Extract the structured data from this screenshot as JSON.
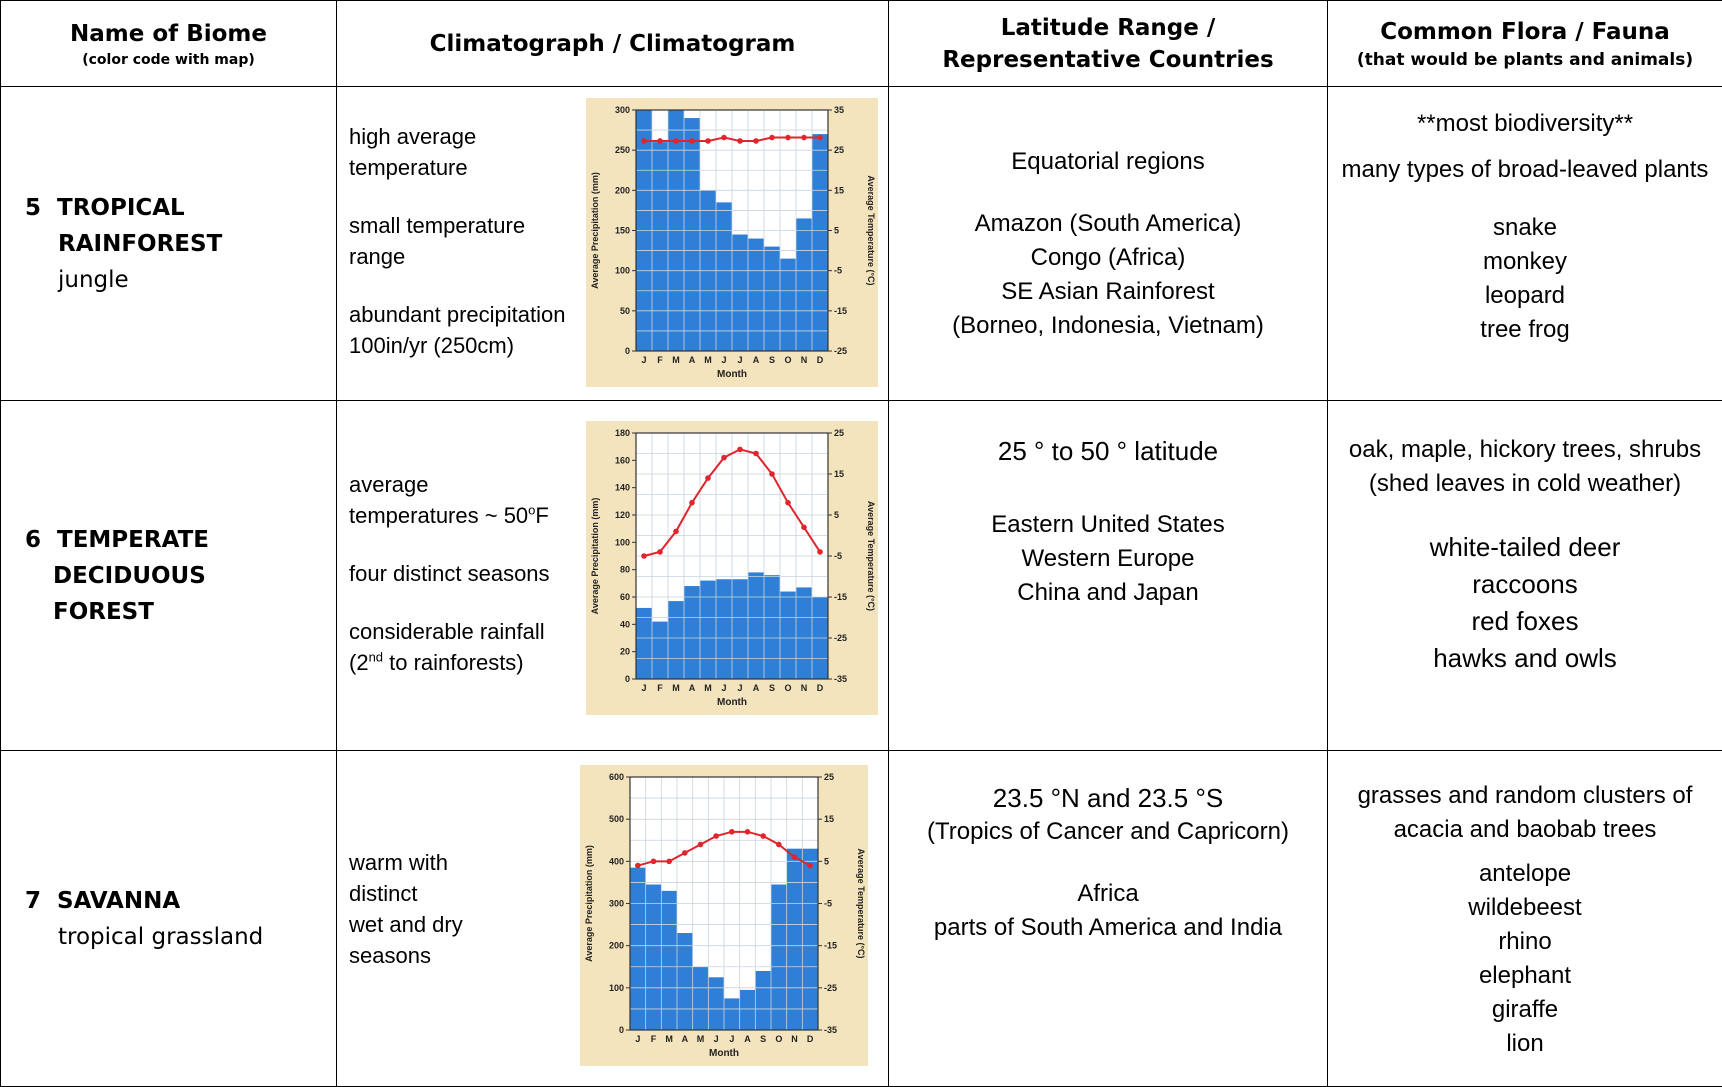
{
  "headers": {
    "name": "Name of Biome",
    "name_sub": "(color code with map)",
    "climatograph": "Climatograph / Climatogram",
    "latitude_line1": "Latitude Range /",
    "latitude_line2": "Representative Countries",
    "flora": "Common Flora / Fauna",
    "flora_sub": "(that would be plants and animals)"
  },
  "rows": [
    {
      "number": "5",
      "name_line1": "TROPICAL",
      "name_line2": "RAINFOREST",
      "common_name": "jungle",
      "climate": [
        "high average",
        "temperature",
        "small temperature",
        "range",
        "abundant precipitation",
        "100in/yr  (250cm)"
      ],
      "latitude": [
        "Equatorial regions",
        "Amazon (South America)",
        "Congo (Africa)",
        "SE Asian Rainforest",
        "(Borneo, Indonesia, Vietnam)"
      ],
      "flora": [
        "**most biodiversity**",
        "many types of broad-leaved plants"
      ],
      "fauna": [
        "snake",
        "monkey",
        "leopard",
        "tree frog"
      ]
    },
    {
      "number": "6",
      "name_line1": "TEMPERATE",
      "name_line2": "DECIDUOUS",
      "name_line3": "FOREST",
      "climate": [
        "average",
        "temperatures ~ 50",
        "o",
        "F",
        "four distinct seasons",
        "considerable rainfall",
        "(2",
        "nd",
        " to rainforests)"
      ],
      "latitude": [
        "25 ° to 50 ° latitude",
        "Eastern United States",
        "Western Europe",
        "China and Japan"
      ],
      "flora": [
        "oak, maple, hickory trees, shrubs",
        "(shed leaves in cold weather)"
      ],
      "fauna": [
        "white-tailed deer",
        "raccoons",
        "red foxes",
        "hawks and owls"
      ]
    },
    {
      "number": "7",
      "name_line1": "SAVANNA",
      "common_name": "tropical grassland",
      "climate": [
        "warm with",
        "distinct",
        "wet and dry",
        "seasons"
      ],
      "latitude": [
        "23.5 °N and 23.5 °S",
        "(Tropics of Cancer and Capricorn)",
        "Africa",
        "parts of South America and India"
      ],
      "flora": [
        "grasses and random clusters of",
        "acacia and baobab trees"
      ],
      "fauna": [
        "antelope",
        "wildebeest",
        "rhino",
        "elephant",
        "giraffe",
        "lion"
      ]
    }
  ],
  "chart_data": [
    {
      "type": "bar",
      "categories": [
        "J",
        "F",
        "M",
        "A",
        "M",
        "J",
        "J",
        "A",
        "S",
        "O",
        "N",
        "D"
      ],
      "xlabel": "Month",
      "ylabel": "Average Precipitation (mm)",
      "y2label": "Average Temperature (°C)",
      "ylim": [
        0,
        300
      ],
      "y2lim": [
        -35,
        35
      ],
      "yticks": [
        "0",
        "50",
        "100",
        "150",
        "200",
        "250",
        "300"
      ],
      "y2ticks": [
        "-25",
        "-15",
        "-5",
        "5",
        "15",
        "25",
        "35"
      ],
      "series": [
        {
          "name": "Average Precipitation (mm)",
          "kind": "bar",
          "values": [
            300,
            260,
            300,
            290,
            200,
            185,
            145,
            140,
            130,
            115,
            165,
            270
          ]
        },
        {
          "name": "Average Temperature (°C)",
          "kind": "line",
          "values": [
            26,
            26,
            26,
            26,
            26,
            27,
            26,
            26,
            27,
            27,
            27,
            27
          ]
        }
      ],
      "colors": {
        "bar": "#2f7fd6",
        "line": "#e0252d",
        "background": "#f4e4bd"
      }
    },
    {
      "type": "bar",
      "categories": [
        "J",
        "F",
        "M",
        "A",
        "M",
        "J",
        "J",
        "A",
        "S",
        "O",
        "N",
        "D"
      ],
      "xlabel": "Month",
      "ylabel": "Average Precipitation (mm)",
      "y2label": "Average Temperature (°C)",
      "ylim": [
        0,
        180
      ],
      "y2lim": [
        -35,
        25
      ],
      "yticks": [
        "0",
        "20",
        "40",
        "60",
        "80",
        "100",
        "120",
        "140",
        "160",
        "180"
      ],
      "y2ticks": [
        "-35",
        "-25",
        "-15",
        "-5",
        "5",
        "15",
        "25"
      ],
      "series": [
        {
          "name": "Average Precipitation (mm)",
          "kind": "bar",
          "values": [
            52,
            42,
            57,
            68,
            72,
            73,
            73,
            78,
            76,
            64,
            67,
            60
          ]
        },
        {
          "name": "Average Temperature (°C)",
          "kind": "line",
          "values": [
            -5,
            -4,
            1,
            8,
            14,
            19,
            21,
            20,
            15,
            8,
            2,
            -4
          ]
        }
      ],
      "colors": {
        "bar": "#2f7fd6",
        "line": "#e0252d",
        "background": "#f4e4bd"
      }
    },
    {
      "type": "bar",
      "categories": [
        "J",
        "F",
        "M",
        "A",
        "M",
        "J",
        "J",
        "A",
        "S",
        "O",
        "N",
        "D"
      ],
      "xlabel": "Month",
      "ylabel": "Average Precipitation (mm)",
      "y2label": "Average Temperature (°C)",
      "ylim": [
        0,
        600
      ],
      "y2lim": [
        -35,
        25
      ],
      "yticks": [
        "0",
        "100",
        "200",
        "300",
        "400",
        "500",
        "600"
      ],
      "y2ticks": [
        "-35",
        "-25",
        "-15",
        "-5",
        "5",
        "15",
        "25"
      ],
      "series": [
        {
          "name": "Average Precipitation (mm)",
          "kind": "bar",
          "values": [
            385,
            345,
            330,
            230,
            150,
            125,
            75,
            95,
            140,
            345,
            430,
            430
          ]
        },
        {
          "name": "Average Temperature (°C)",
          "kind": "line",
          "values": [
            4,
            5,
            5,
            7,
            9,
            11,
            12,
            12,
            11,
            9,
            6,
            4
          ]
        }
      ],
      "colors": {
        "bar": "#2f7fd6",
        "line": "#e0252d",
        "background": "#f4e4bd"
      }
    }
  ]
}
